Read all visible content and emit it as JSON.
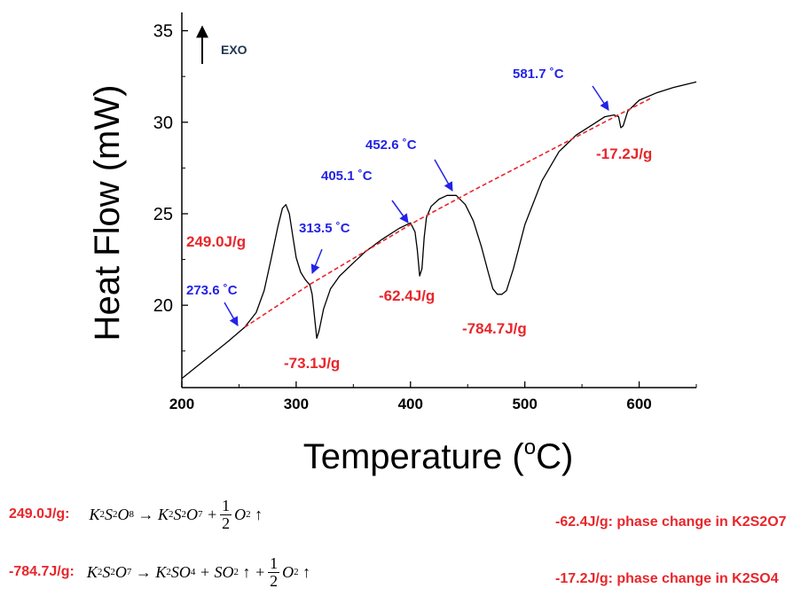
{
  "chart_data": {
    "type": "line",
    "xlabel": "Temperature (",
    "xlabel_unit": "o",
    "xlabel_suffix": "C)",
    "ylabel": "Heat Flow (mW)",
    "xlim": [
      200,
      650
    ],
    "ylim": [
      15.5,
      36
    ],
    "x_ticks": [
      "200",
      "300",
      "400",
      "500",
      "600"
    ],
    "y_ticks": [
      "20",
      "25",
      "30",
      "35"
    ],
    "x_tick_values": [
      200,
      300,
      400,
      500,
      600
    ],
    "y_tick_values": [
      20,
      25,
      30,
      35
    ],
    "exo_label": "EXO",
    "series": [
      {
        "style": "solid",
        "color": "#000000",
        "x": [
          200,
          220,
          240,
          255,
          265,
          272,
          278,
          284,
          288,
          291,
          294,
          297,
          300,
          304,
          308,
          312,
          314,
          316,
          318,
          320,
          324,
          330,
          338,
          348,
          360,
          375,
          390,
          400,
          404,
          406,
          408,
          410,
          412,
          414,
          418,
          425,
          432,
          440,
          448,
          455,
          462,
          468,
          472,
          476,
          480,
          484,
          490,
          500,
          515,
          530,
          545,
          560,
          570,
          578,
          582,
          584,
          586,
          590,
          600,
          615,
          630,
          650
        ],
        "y": [
          16.0,
          17.0,
          18.0,
          18.8,
          19.6,
          20.8,
          22.5,
          24.3,
          25.3,
          25.5,
          25.0,
          23.8,
          22.6,
          21.8,
          21.4,
          21.1,
          20.6,
          19.4,
          18.2,
          18.6,
          19.8,
          20.9,
          21.6,
          22.2,
          22.9,
          23.6,
          24.2,
          24.5,
          24.0,
          23.0,
          21.6,
          22.0,
          23.7,
          24.8,
          25.4,
          25.8,
          26.0,
          26.0,
          25.5,
          24.6,
          23.2,
          21.8,
          20.9,
          20.6,
          20.6,
          20.8,
          22.0,
          24.4,
          26.8,
          28.4,
          29.3,
          29.9,
          30.3,
          30.4,
          30.3,
          29.7,
          29.8,
          30.6,
          31.2,
          31.6,
          31.9,
          32.2
        ]
      },
      {
        "style": "dashed",
        "color": "#e8262b",
        "x": [
          255,
          313.5,
          405.1,
          452.6,
          581.7,
          610
        ],
        "y": [
          18.8,
          21.2,
          24.6,
          26.2,
          30.4,
          31.3
        ]
      }
    ],
    "temperature_labels": [
      {
        "text": "273.6 ˚C",
        "x": 270,
        "y": 19.4
      },
      {
        "text": "313.5 ˚C",
        "x": 313.5,
        "y": 21.1
      },
      {
        "text": "405.1 ˚C",
        "x": 405.1,
        "y": 24.6
      },
      {
        "text": "452.6 ˚C",
        "x": 440,
        "y": 26.0
      },
      {
        "text": "581.7 ˚C",
        "x": 578,
        "y": 30.4
      }
    ],
    "enthalpy_labels": [
      {
        "text": "249.0J/g",
        "x": 210,
        "y": 23.5
      },
      {
        "text": "-73.1J/g",
        "x": 310,
        "y": 16.8
      },
      {
        "text": "-62.4J/g",
        "x": 392,
        "y": 20.3
      },
      {
        "text": "-784.7J/g",
        "x": 480,
        "y": 19.3
      },
      {
        "text": "-17.2J/g",
        "x": 571,
        "y": 28.0
      }
    ]
  },
  "equations": [
    {
      "label": "249.0J/g:"
    },
    {
      "label": "-784.7J/g:"
    }
  ],
  "notes": [
    "-62.4J/g: phase change in K2S2O7",
    "-17.2J/g: phase change in K2SO4"
  ],
  "colors": {
    "blue": "#2323e6",
    "red": "#e8262b"
  }
}
